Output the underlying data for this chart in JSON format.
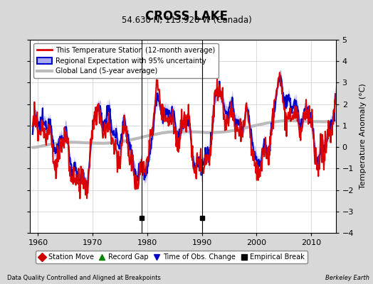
{
  "title": "CROSS LAKE",
  "subtitle": "54.630 N, 113.920 W (Canada)",
  "ylabel": "Temperature Anomaly (°C)",
  "xlabel_left": "Data Quality Controlled and Aligned at Breakpoints",
  "xlabel_right": "Berkeley Earth",
  "ylim": [
    -4,
    5
  ],
  "xlim": [
    1958.5,
    2014.5
  ],
  "yticks": [
    -4,
    -3,
    -2,
    -1,
    0,
    1,
    2,
    3,
    4,
    5
  ],
  "xticks": [
    1960,
    1970,
    1980,
    1990,
    2000,
    2010
  ],
  "bg_color": "#d8d8d8",
  "plot_bg_color": "#ffffff",
  "vertical_lines": [
    1979,
    1990
  ],
  "empirical_breaks": [
    1979,
    1990
  ],
  "station_color": "#dd0000",
  "regional_color": "#0000cc",
  "regional_fill_color": "#aaaaee",
  "global_color": "#bbbbbb",
  "global_linewidth": 3.0,
  "station_linewidth": 1.5,
  "regional_linewidth": 1.5,
  "legend_labels": [
    "This Temperature Station (12-month average)",
    "Regional Expectation with 95% uncertainty",
    "Global Land (5-year average)"
  ],
  "legend2_labels": [
    "Station Move",
    "Record Gap",
    "Time of Obs. Change",
    "Empirical Break"
  ]
}
